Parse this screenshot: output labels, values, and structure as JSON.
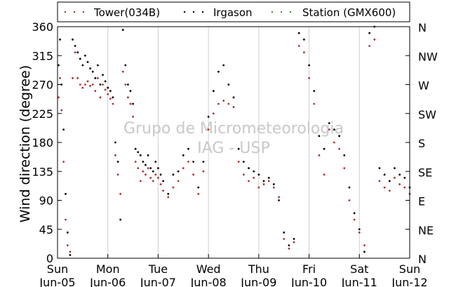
{
  "chart_data": {
    "type": "scatter",
    "title": "",
    "xlabel": "",
    "ylabel": "Wind direction (degree)",
    "ylim": [
      0,
      360
    ],
    "xlim": [
      0,
      7
    ],
    "grid": "vertical lines at day boundaries",
    "legend": {
      "placement": "top, outside plot",
      "entries": [
        "Tower(034B)",
        "Irgason",
        "Station (GMX600)"
      ]
    },
    "watermark": [
      "Grupo de Micrometeorologia",
      "IAG - USP"
    ],
    "x_ticks": [
      {
        "value": 0,
        "day": "Sun",
        "date": "Jun-05"
      },
      {
        "value": 1,
        "day": "Mon",
        "date": "Jun-06"
      },
      {
        "value": 2,
        "day": "Tue",
        "date": "Jun-07"
      },
      {
        "value": 3,
        "day": "Wed",
        "date": "Jun-08"
      },
      {
        "value": 4,
        "day": "Thu",
        "date": "Jun-09"
      },
      {
        "value": 5,
        "day": "Fri",
        "date": "Jun-10"
      },
      {
        "value": 6,
        "day": "Sat",
        "date": "Jun-11"
      },
      {
        "value": 7,
        "day": "Sun",
        "date": "Jun-12"
      }
    ],
    "y_ticks": [
      0,
      45,
      90,
      135,
      180,
      225,
      270,
      315,
      360
    ],
    "compass_ticks": [
      {
        "value": 0,
        "label": "N"
      },
      {
        "value": 45,
        "label": "NE"
      },
      {
        "value": 90,
        "label": "E"
      },
      {
        "value": 135,
        "label": "SE"
      },
      {
        "value": 180,
        "label": "S"
      },
      {
        "value": 225,
        "label": "SW"
      },
      {
        "value": 270,
        "label": "W"
      },
      {
        "value": 315,
        "label": "NW"
      },
      {
        "value": 360,
        "label": "N"
      }
    ],
    "series": [
      {
        "name": "Tower(034B)",
        "color": "#b03030",
        "x": [
          0.02,
          0.05,
          0.08,
          0.12,
          0.16,
          0.2,
          0.25,
          0.3,
          0.35,
          0.4,
          0.45,
          0.5,
          0.55,
          0.6,
          0.65,
          0.7,
          0.75,
          0.8,
          0.85,
          0.9,
          0.95,
          1.0,
          1.05,
          1.1,
          1.15,
          1.2,
          1.25,
          1.3,
          1.35,
          1.4,
          1.45,
          1.5,
          1.55,
          1.6,
          1.65,
          1.7,
          1.75,
          1.8,
          1.85,
          1.9,
          1.95,
          2.0,
          2.05,
          2.1,
          2.2,
          2.3,
          2.4,
          2.5,
          2.6,
          2.7,
          2.8,
          2.9,
          3.0,
          3.1,
          3.2,
          3.3,
          3.4,
          3.5,
          3.6,
          3.7,
          3.8,
          3.9,
          4.0,
          4.1,
          4.2,
          4.3,
          4.4,
          4.5,
          4.6,
          4.7,
          4.8,
          4.9,
          5.0,
          5.1,
          5.2,
          5.3,
          5.4,
          5.5,
          5.6,
          5.7,
          5.8,
          5.9,
          6.0,
          6.1,
          6.2,
          6.3,
          6.4,
          6.5,
          6.6,
          6.7,
          6.8,
          6.9,
          7.0
        ],
        "y": [
          250,
          280,
          230,
          150,
          60,
          20,
          10,
          280,
          320,
          280,
          270,
          265,
          270,
          275,
          268,
          270,
          260,
          280,
          250,
          270,
          262,
          255,
          248,
          240,
          160,
          130,
          100,
          290,
          270,
          250,
          240,
          220,
          150,
          140,
          120,
          135,
          130,
          140,
          125,
          120,
          130,
          125,
          115,
          105,
          95,
          110,
          120,
          140,
          150,
          130,
          100,
          135,
          200,
          225,
          240,
          245,
          240,
          235,
          150,
          130,
          120,
          125,
          110,
          115,
          120,
          110,
          95,
          30,
          15,
          25,
          330,
          320,
          280,
          240,
          160,
          130,
          200,
          180,
          170,
          140,
          90,
          60,
          40,
          20,
          330,
          340,
          120,
          110,
          105,
          125,
          115,
          110,
          100
        ]
      },
      {
        "name": "Irgason",
        "color": "#000000",
        "x": [
          0.02,
          0.05,
          0.08,
          0.12,
          0.16,
          0.2,
          0.25,
          0.3,
          0.35,
          0.4,
          0.45,
          0.5,
          0.55,
          0.6,
          0.65,
          0.7,
          0.75,
          0.8,
          0.85,
          0.9,
          0.95,
          1.0,
          1.05,
          1.1,
          1.15,
          1.2,
          1.25,
          1.3,
          1.35,
          1.4,
          1.45,
          1.5,
          1.55,
          1.6,
          1.65,
          1.7,
          1.75,
          1.8,
          1.85,
          1.9,
          1.95,
          2.0,
          2.05,
          2.1,
          2.2,
          2.3,
          2.4,
          2.5,
          2.6,
          2.7,
          2.8,
          2.9,
          3.0,
          3.1,
          3.2,
          3.3,
          3.4,
          3.5,
          3.6,
          3.7,
          3.8,
          3.9,
          4.0,
          4.1,
          4.2,
          4.3,
          4.4,
          4.5,
          4.6,
          4.7,
          4.8,
          4.9,
          5.0,
          5.1,
          5.2,
          5.3,
          5.4,
          5.5,
          5.6,
          5.7,
          5.8,
          5.9,
          6.0,
          6.1,
          6.2,
          6.3,
          6.4,
          6.5,
          6.6,
          6.7,
          6.8,
          6.9,
          7.0
        ],
        "y": [
          300,
          340,
          270,
          200,
          100,
          40,
          5,
          340,
          330,
          320,
          310,
          300,
          315,
          305,
          295,
          290,
          280,
          300,
          270,
          285,
          275,
          265,
          260,
          250,
          180,
          150,
          60,
          355,
          300,
          270,
          260,
          240,
          170,
          165,
          160,
          150,
          145,
          160,
          140,
          135,
          150,
          140,
          130,
          120,
          100,
          130,
          135,
          160,
          170,
          150,
          110,
          150,
          220,
          260,
          290,
          300,
          270,
          250,
          170,
          150,
          140,
          135,
          130,
          120,
          125,
          115,
          90,
          40,
          20,
          30,
          350,
          340,
          300,
          260,
          190,
          170,
          210,
          200,
          190,
          160,
          110,
          70,
          45,
          10,
          350,
          360,
          140,
          130,
          120,
          140,
          130,
          125,
          110
        ]
      },
      {
        "name": "Station (GMX600)",
        "color": "#2aa02a",
        "x": [],
        "y": []
      }
    ]
  }
}
